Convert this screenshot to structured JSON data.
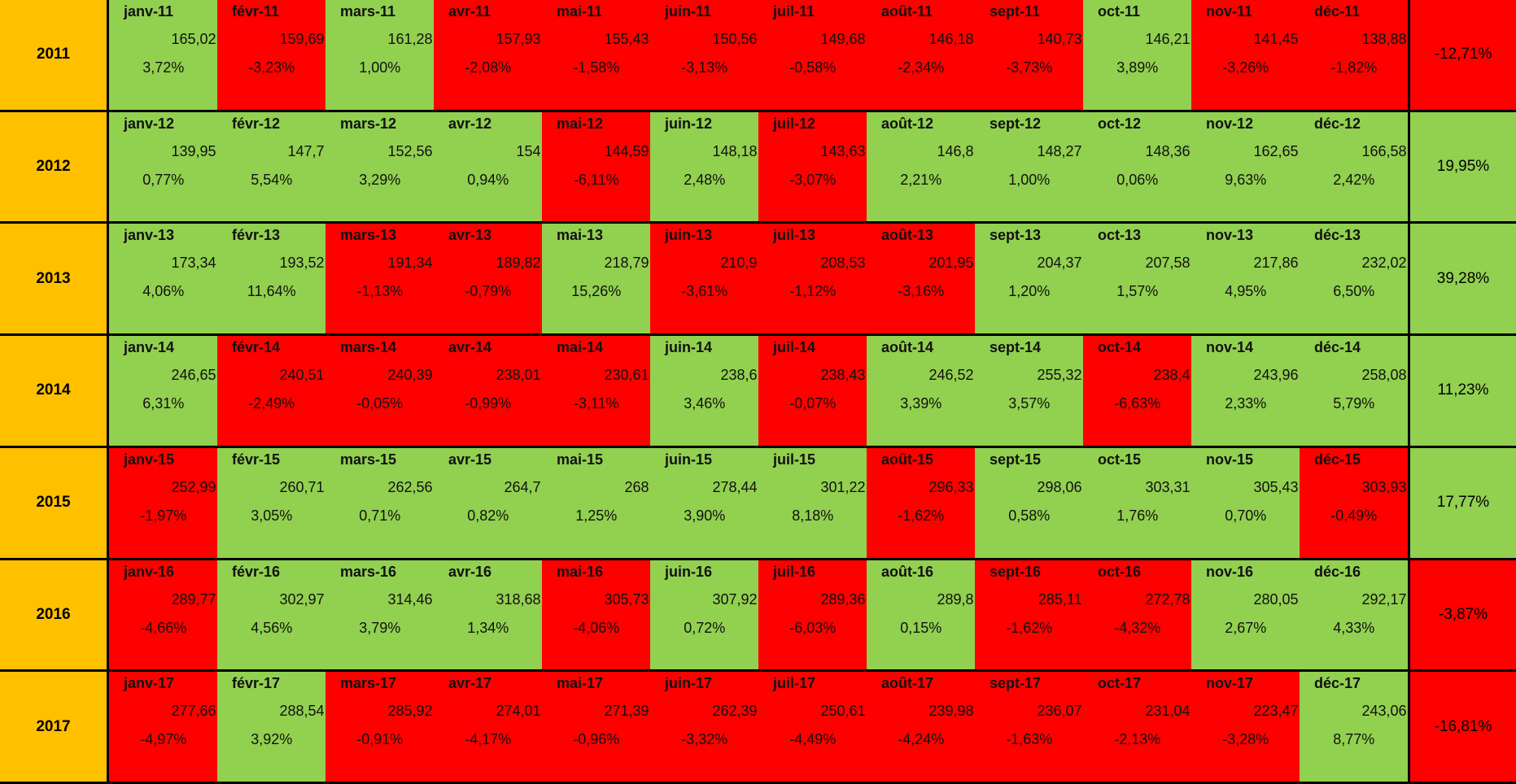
{
  "year_color": "#ffc000",
  "rows": [
    {
      "year": "2011",
      "months": [
        [
          "janv-11",
          "165,02",
          "3,72%",
          "#92d050"
        ],
        [
          "févr-11",
          "159,69",
          "-3,23%",
          "#ff0000"
        ],
        [
          "mars-11",
          "161,28",
          "1,00%",
          "#92d050"
        ],
        [
          "avr-11",
          "157,93",
          "-2,08%",
          "#ff0000"
        ],
        [
          "mai-11",
          "155,43",
          "-1,58%",
          "#ff0000"
        ],
        [
          "juin-11",
          "150,56",
          "-3,13%",
          "#ff0000"
        ],
        [
          "juil-11",
          "149,68",
          "-0,58%",
          "#ff0000"
        ],
        [
          "août-11",
          "146,18",
          "-2,34%",
          "#ff0000"
        ],
        [
          "sept-11",
          "140,73",
          "-3,73%",
          "#ff0000"
        ],
        [
          "oct-11",
          "146,21",
          "3,89%",
          "#92d050"
        ],
        [
          "nov-11",
          "141,45",
          "-3,26%",
          "#ff0000"
        ],
        [
          "déc-11",
          "138,88",
          "-1,82%",
          "#ff0000"
        ]
      ],
      "total": "-12,71%",
      "total_color": "#ff0000"
    },
    {
      "year": "2012",
      "months": [
        [
          "janv-12",
          "139,95",
          "0,77%",
          "#92d050"
        ],
        [
          "févr-12",
          "147,7",
          "5,54%",
          "#92d050"
        ],
        [
          "mars-12",
          "152,56",
          "3,29%",
          "#92d050"
        ],
        [
          "avr-12",
          "154",
          "0,94%",
          "#92d050"
        ],
        [
          "mai-12",
          "144,59",
          "-6,11%",
          "#ff0000"
        ],
        [
          "juin-12",
          "148,18",
          "2,48%",
          "#92d050"
        ],
        [
          "juil-12",
          "143,63",
          "-3,07%",
          "#ff0000"
        ],
        [
          "août-12",
          "146,8",
          "2,21%",
          "#92d050"
        ],
        [
          "sept-12",
          "148,27",
          "1,00%",
          "#92d050"
        ],
        [
          "oct-12",
          "148,36",
          "0,06%",
          "#92d050"
        ],
        [
          "nov-12",
          "162,65",
          "9,63%",
          "#92d050"
        ],
        [
          "déc-12",
          "166,58",
          "2,42%",
          "#92d050"
        ]
      ],
      "total": "19,95%",
      "total_color": "#92d050"
    },
    {
      "year": "2013",
      "months": [
        [
          "janv-13",
          "173,34",
          "4,06%",
          "#92d050"
        ],
        [
          "févr-13",
          "193,52",
          "11,64%",
          "#92d050"
        ],
        [
          "mars-13",
          "191,34",
          "-1,13%",
          "#ff0000"
        ],
        [
          "avr-13",
          "189,82",
          "-0,79%",
          "#ff0000"
        ],
        [
          "mai-13",
          "218,79",
          "15,26%",
          "#92d050"
        ],
        [
          "juin-13",
          "210,9",
          "-3,61%",
          "#ff0000"
        ],
        [
          "juil-13",
          "208,53",
          "-1,12%",
          "#ff0000"
        ],
        [
          "août-13",
          "201,95",
          "-3,16%",
          "#ff0000"
        ],
        [
          "sept-13",
          "204,37",
          "1,20%",
          "#92d050"
        ],
        [
          "oct-13",
          "207,58",
          "1,57%",
          "#92d050"
        ],
        [
          "nov-13",
          "217,86",
          "4,95%",
          "#92d050"
        ],
        [
          "déc-13",
          "232,02",
          "6,50%",
          "#92d050"
        ]
      ],
      "total": "39,28%",
      "total_color": "#92d050"
    },
    {
      "year": "2014",
      "months": [
        [
          "janv-14",
          "246,65",
          "6,31%",
          "#92d050"
        ],
        [
          "févr-14",
          "240,51",
          "-2,49%",
          "#ff0000"
        ],
        [
          "mars-14",
          "240,39",
          "-0,05%",
          "#ff0000"
        ],
        [
          "avr-14",
          "238,01",
          "-0,99%",
          "#ff0000"
        ],
        [
          "mai-14",
          "230,61",
          "-3,11%",
          "#ff0000"
        ],
        [
          "juin-14",
          "238,6",
          "3,46%",
          "#92d050"
        ],
        [
          "juil-14",
          "238,43",
          "-0,07%",
          "#ff0000"
        ],
        [
          "août-14",
          "246,52",
          "3,39%",
          "#92d050"
        ],
        [
          "sept-14",
          "255,32",
          "3,57%",
          "#92d050"
        ],
        [
          "oct-14",
          "238,4",
          "-6,63%",
          "#ff0000"
        ],
        [
          "nov-14",
          "243,96",
          "2,33%",
          "#92d050"
        ],
        [
          "déc-14",
          "258,08",
          "5,79%",
          "#92d050"
        ]
      ],
      "total": "11,23%",
      "total_color": "#92d050"
    },
    {
      "year": "2015",
      "months": [
        [
          "janv-15",
          "252,99",
          "-1,97%",
          "#ff0000"
        ],
        [
          "févr-15",
          "260,71",
          "3,05%",
          "#92d050"
        ],
        [
          "mars-15",
          "262,56",
          "0,71%",
          "#92d050"
        ],
        [
          "avr-15",
          "264,7",
          "0,82%",
          "#92d050"
        ],
        [
          "mai-15",
          "268",
          "1,25%",
          "#92d050"
        ],
        [
          "juin-15",
          "278,44",
          "3,90%",
          "#92d050"
        ],
        [
          "juil-15",
          "301,22",
          "8,18%",
          "#92d050"
        ],
        [
          "août-15",
          "296,33",
          "-1,62%",
          "#ff0000"
        ],
        [
          "sept-15",
          "298,06",
          "0,58%",
          "#92d050"
        ],
        [
          "oct-15",
          "303,31",
          "1,76%",
          "#92d050"
        ],
        [
          "nov-15",
          "305,43",
          "0,70%",
          "#92d050"
        ],
        [
          "déc-15",
          "303,93",
          "-0,49%",
          "#ff0000"
        ]
      ],
      "total": "17,77%",
      "total_color": "#92d050"
    },
    {
      "year": "2016",
      "months": [
        [
          "janv-16",
          "289,77",
          "-4,66%",
          "#ff0000"
        ],
        [
          "févr-16",
          "302,97",
          "4,56%",
          "#92d050"
        ],
        [
          "mars-16",
          "314,46",
          "3,79%",
          "#92d050"
        ],
        [
          "avr-16",
          "318,68",
          "1,34%",
          "#92d050"
        ],
        [
          "mai-16",
          "305,73",
          "-4,06%",
          "#ff0000"
        ],
        [
          "juin-16",
          "307,92",
          "0,72%",
          "#92d050"
        ],
        [
          "juil-16",
          "289,36",
          "-6,03%",
          "#ff0000"
        ],
        [
          "août-16",
          "289,8",
          "0,15%",
          "#92d050"
        ],
        [
          "sept-16",
          "285,11",
          "-1,62%",
          "#ff0000"
        ],
        [
          "oct-16",
          "272,78",
          "-4,32%",
          "#ff0000"
        ],
        [
          "nov-16",
          "280,05",
          "2,67%",
          "#92d050"
        ],
        [
          "déc-16",
          "292,17",
          "4,33%",
          "#92d050"
        ]
      ],
      "total": "-3,87%",
      "total_color": "#ff0000"
    },
    {
      "year": "2017",
      "months": [
        [
          "janv-17",
          "277,66",
          "-4,97%",
          "#ff0000"
        ],
        [
          "févr-17",
          "288,54",
          "3,92%",
          "#92d050"
        ],
        [
          "mars-17",
          "285,92",
          "-0,91%",
          "#ff0000"
        ],
        [
          "avr-17",
          "274,01",
          "-4,17%",
          "#ff0000"
        ],
        [
          "mai-17",
          "271,39",
          "-0,96%",
          "#ff0000"
        ],
        [
          "juin-17",
          "262,39",
          "-3,32%",
          "#ff0000"
        ],
        [
          "juil-17",
          "250,61",
          "-4,49%",
          "#ff0000"
        ],
        [
          "août-17",
          "239,98",
          "-4,24%",
          "#ff0000"
        ],
        [
          "sept-17",
          "236,07",
          "-1,63%",
          "#ff0000"
        ],
        [
          "oct-17",
          "231,04",
          "-2,13%",
          "#ff0000"
        ],
        [
          "nov-17",
          "223,47",
          "-3,28%",
          "#ff0000"
        ],
        [
          "déc-17",
          "243,06",
          "8,77%",
          "#92d050"
        ]
      ],
      "total": "-16,81%",
      "total_color": "#ff0000"
    }
  ]
}
